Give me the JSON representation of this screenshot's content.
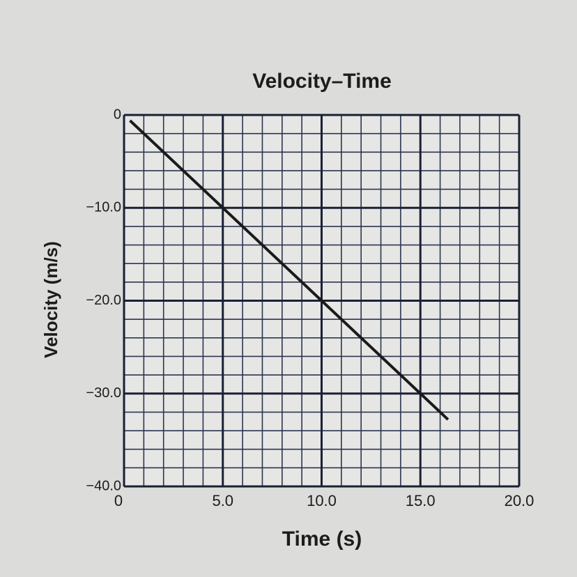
{
  "chart_data": {
    "type": "line",
    "title": "Velocity–Time",
    "x_label": "Time (s)",
    "y_label": "Velocity (m/s)",
    "x": [
      0.3,
      16.4
    ],
    "values": [
      -0.6,
      -32.8
    ],
    "color": "#1a1a1a",
    "xlim": [
      0,
      20
    ],
    "ylim": [
      -40,
      0
    ],
    "xticks": [
      0,
      {
        "value": 5,
        "label": "5.0"
      },
      {
        "value": 10,
        "label": "10.0"
      },
      {
        "value": 15,
        "label": "15.0"
      },
      {
        "value": 20,
        "label": "20.0"
      }
    ],
    "yticks": [
      0,
      {
        "value": -10,
        "label": "−10.0"
      },
      {
        "value": -20,
        "label": "−20.0"
      },
      {
        "value": -30,
        "label": "−30.0"
      },
      {
        "value": -40,
        "label": "−40.0"
      }
    ],
    "x_minor_grid": [
      1,
      2,
      3,
      4,
      6,
      7,
      8,
      9,
      11,
      12,
      13,
      14,
      16,
      17,
      18,
      19
    ],
    "y_minor_grid": [
      -2,
      -4,
      -6,
      -8,
      -12,
      -14,
      -16,
      -18,
      -22,
      -24,
      -26,
      -28,
      -32,
      -34,
      -36,
      -38
    ],
    "grid": true
  }
}
